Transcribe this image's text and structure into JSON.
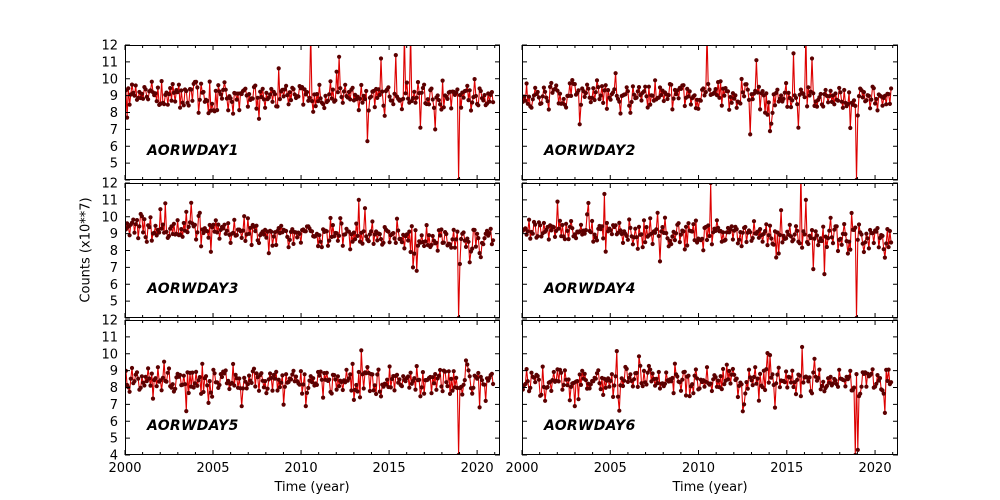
{
  "figure": {
    "ylabel": "Counts (x10**7)",
    "xlabel": "Time (year)",
    "colors": {
      "line": "#dd0000",
      "marker": "#5b0000",
      "axis": "#000000",
      "background": "#ffffff"
    }
  },
  "chart_data": [
    {
      "type": "line",
      "title": "AORWDAY1",
      "xlabel": "Time (year)",
      "ylabel": "Counts (x10**7)",
      "xlim": [
        2000,
        2021.3
      ],
      "ylim": [
        4,
        12
      ],
      "x_ticks": [
        2000,
        2005,
        2010,
        2015,
        2020
      ],
      "x_minor_ticks": [
        2001,
        2002,
        2003,
        2004,
        2006,
        2007,
        2008,
        2009,
        2011,
        2012,
        2013,
        2014,
        2016,
        2017,
        2018,
        2019,
        2021
      ],
      "y_ticks": [
        4,
        5,
        6,
        7,
        8,
        9,
        10,
        11,
        12
      ],
      "grid": false,
      "legend": "none",
      "series_params": {
        "seed": 11,
        "x_start": 2000.05,
        "x_end": 2020.9,
        "x_step": 0.07,
        "mean_start": 9.15,
        "mean_end": 8.85,
        "noise": 0.4,
        "outlier_prob": 0.05,
        "outlier_scale": 1.2
      },
      "anomalies": [
        {
          "x": 2000.1,
          "y": 7.7
        },
        {
          "x": 2010.55,
          "y": 12.8
        },
        {
          "x": 2013.8,
          "y": 6.3
        },
        {
          "x": 2014.55,
          "y": 11.2
        },
        {
          "x": 2015.35,
          "y": 11.4
        },
        {
          "x": 2015.9,
          "y": 12.6
        },
        {
          "x": 2016.2,
          "y": 12.8
        },
        {
          "x": 2017.6,
          "y": 7.0
        },
        {
          "x": 2018.95,
          "y": 4.0
        }
      ]
    },
    {
      "type": "line",
      "title": "AORWDAY2",
      "xlabel": "Time (year)",
      "ylabel": "Counts (x10**7)",
      "xlim": [
        2000,
        2021.3
      ],
      "ylim": [
        4,
        12
      ],
      "x_ticks": [
        2000,
        2005,
        2010,
        2015,
        2020
      ],
      "x_minor_ticks": [
        2001,
        2002,
        2003,
        2004,
        2006,
        2007,
        2008,
        2009,
        2011,
        2012,
        2013,
        2014,
        2016,
        2017,
        2018,
        2019,
        2021
      ],
      "y_ticks": [
        4,
        5,
        6,
        7,
        8,
        9,
        10,
        11,
        12
      ],
      "grid": false,
      "legend": "none",
      "series_params": {
        "seed": 22,
        "x_start": 2000.05,
        "x_end": 2020.9,
        "x_step": 0.07,
        "mean_start": 9.15,
        "mean_end": 8.8,
        "noise": 0.42,
        "outlier_prob": 0.05,
        "outlier_scale": 1.2
      },
      "anomalies": [
        {
          "x": 2010.5,
          "y": 12.7
        },
        {
          "x": 2012.9,
          "y": 6.7
        },
        {
          "x": 2013.3,
          "y": 11.1
        },
        {
          "x": 2014.05,
          "y": 6.9
        },
        {
          "x": 2015.35,
          "y": 11.5
        },
        {
          "x": 2015.65,
          "y": 7.1
        },
        {
          "x": 2016.05,
          "y": 12.7
        },
        {
          "x": 2016.4,
          "y": 11.2
        },
        {
          "x": 2018.95,
          "y": 4.0
        }
      ]
    },
    {
      "type": "line",
      "title": "AORWDAY3",
      "xlabel": "Time (year)",
      "ylabel": "Counts (x10**7)",
      "xlim": [
        2000,
        2021.3
      ],
      "ylim": [
        4,
        12
      ],
      "x_ticks": [
        2000,
        2005,
        2010,
        2015,
        2020
      ],
      "x_minor_ticks": [
        2001,
        2002,
        2003,
        2004,
        2006,
        2007,
        2008,
        2009,
        2011,
        2012,
        2013,
        2014,
        2016,
        2017,
        2018,
        2019,
        2021
      ],
      "y_ticks": [
        4,
        5,
        6,
        7,
        8,
        9,
        10,
        11,
        12
      ],
      "grid": false,
      "legend": "none",
      "series_params": {
        "seed": 33,
        "x_start": 2000.05,
        "x_end": 2020.9,
        "x_step": 0.07,
        "mean_start": 9.3,
        "mean_end": 8.6,
        "noise": 0.38,
        "outlier_prob": 0.045,
        "outlier_scale": 1.1
      },
      "anomalies": [
        {
          "x": 2002.3,
          "y": 10.8
        },
        {
          "x": 2013.3,
          "y": 11.0
        },
        {
          "x": 2016.35,
          "y": 7.0
        },
        {
          "x": 2016.6,
          "y": 6.8
        },
        {
          "x": 2018.95,
          "y": 4.0
        },
        {
          "x": 2019.6,
          "y": 7.3
        }
      ]
    },
    {
      "type": "line",
      "title": "AORWDAY4",
      "xlabel": "Time (year)",
      "ylabel": "Counts (x10**7)",
      "xlim": [
        2000,
        2021.3
      ],
      "ylim": [
        4,
        12
      ],
      "x_ticks": [
        2000,
        2005,
        2010,
        2015,
        2020
      ],
      "x_minor_ticks": [
        2001,
        2002,
        2003,
        2004,
        2006,
        2007,
        2008,
        2009,
        2011,
        2012,
        2013,
        2014,
        2016,
        2017,
        2018,
        2019,
        2021
      ],
      "y_ticks": [
        4,
        5,
        6,
        7,
        8,
        9,
        10,
        11,
        12
      ],
      "grid": false,
      "legend": "none",
      "series_params": {
        "seed": 44,
        "x_start": 2000.05,
        "x_end": 2020.9,
        "x_step": 0.07,
        "mean_start": 9.25,
        "mean_end": 8.75,
        "noise": 0.4,
        "outlier_prob": 0.05,
        "outlier_scale": 1.2
      },
      "anomalies": [
        {
          "x": 2002.0,
          "y": 10.9
        },
        {
          "x": 2010.7,
          "y": 12.0
        },
        {
          "x": 2015.8,
          "y": 12.7
        },
        {
          "x": 2016.1,
          "y": 11.0
        },
        {
          "x": 2016.5,
          "y": 6.9
        },
        {
          "x": 2017.1,
          "y": 6.6
        },
        {
          "x": 2018.95,
          "y": 4.0
        }
      ]
    },
    {
      "type": "line",
      "title": "AORWDAY5",
      "xlabel": "Time (year)",
      "ylabel": "Counts (x10**7)",
      "xlim": [
        2000,
        2021.3
      ],
      "ylim": [
        4,
        12
      ],
      "x_ticks": [
        2000,
        2005,
        2010,
        2015,
        2020
      ],
      "x_minor_ticks": [
        2001,
        2002,
        2003,
        2004,
        2006,
        2007,
        2008,
        2009,
        2011,
        2012,
        2013,
        2014,
        2016,
        2017,
        2018,
        2019,
        2021
      ],
      "y_ticks": [
        4,
        5,
        6,
        7,
        8,
        9,
        10,
        11,
        12
      ],
      "grid": false,
      "legend": "none",
      "series_params": {
        "seed": 55,
        "x_start": 2000.05,
        "x_end": 2020.9,
        "x_step": 0.07,
        "mean_start": 8.45,
        "mean_end": 8.35,
        "noise": 0.4,
        "outlier_prob": 0.045,
        "outlier_scale": 1.0
      },
      "anomalies": [
        {
          "x": 2003.5,
          "y": 6.6
        },
        {
          "x": 2010.3,
          "y": 6.9
        },
        {
          "x": 2013.45,
          "y": 10.2
        },
        {
          "x": 2018.95,
          "y": 4.0
        }
      ]
    },
    {
      "type": "line",
      "title": "AORWDAY6",
      "xlabel": "Time (year)",
      "ylabel": "Counts (x10**7)",
      "xlim": [
        2000,
        2021.3
      ],
      "ylim": [
        4,
        12
      ],
      "x_ticks": [
        2000,
        2005,
        2010,
        2015,
        2020
      ],
      "x_minor_ticks": [
        2001,
        2002,
        2003,
        2004,
        2006,
        2007,
        2008,
        2009,
        2011,
        2012,
        2013,
        2014,
        2016,
        2017,
        2018,
        2019,
        2021
      ],
      "y_ticks": [
        4,
        5,
        6,
        7,
        8,
        9,
        10,
        11,
        12
      ],
      "grid": false,
      "legend": "none",
      "series_params": {
        "seed": 66,
        "x_start": 2000.05,
        "x_end": 2020.9,
        "x_step": 0.07,
        "mean_start": 8.5,
        "mean_end": 8.3,
        "noise": 0.4,
        "outlier_prob": 0.045,
        "outlier_scale": 1.0
      },
      "anomalies": [
        {
          "x": 2003.0,
          "y": 6.9
        },
        {
          "x": 2012.6,
          "y": 7.0
        },
        {
          "x": 2015.9,
          "y": 10.4
        },
        {
          "x": 2018.9,
          "y": 4.0
        },
        {
          "x": 2019.05,
          "y": 4.3
        }
      ]
    }
  ]
}
